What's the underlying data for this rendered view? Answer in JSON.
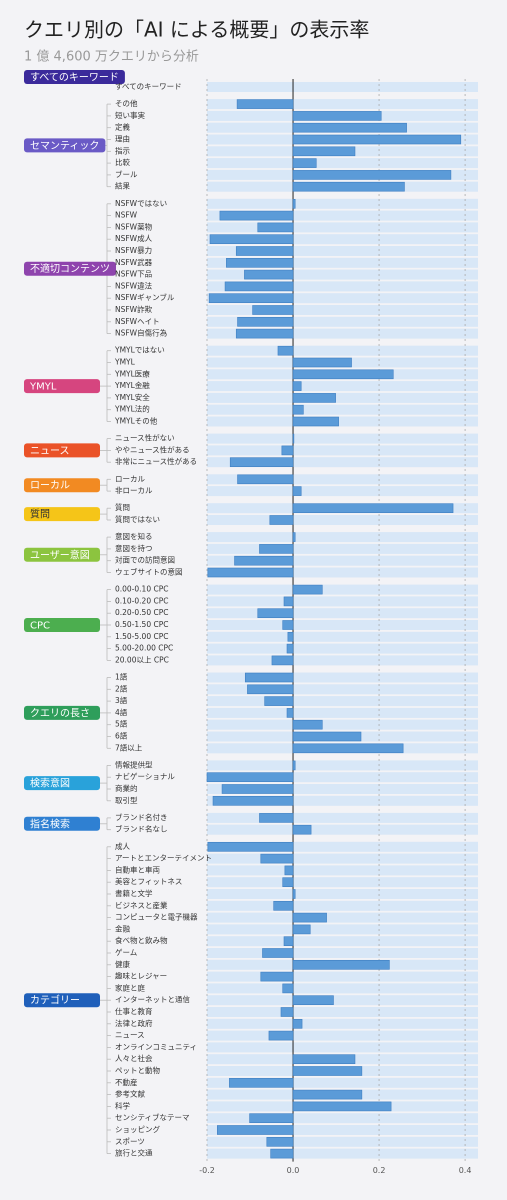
{
  "chart_data": {
    "type": "bar",
    "title": "クエリ別の「AI による概要」の表示率",
    "subtitle": "1 億 4,600 万クエリから分析",
    "bar_color": "#5b9bd8",
    "row_color": "#d8e7f7",
    "grid": true,
    "xlim": [
      -0.2,
      0.43
    ],
    "xticks": [
      -0.2,
      {
        "value": 0,
        "label": "0.0"
      },
      0.2,
      0.4
    ],
    "groups": [
      {
        "name": "すべてのキーワード",
        "color": "#3b2a9b",
        "categories": [
          "すべてのキーワード"
        ],
        "values": [
          0
        ]
      },
      {
        "name": "セマンティック",
        "color": "#6a5ac6",
        "categories": [
          "その他",
          "短い事実",
          "定義",
          "理由",
          "指示",
          "比較",
          "ブール",
          "結果"
        ],
        "values": [
          -0.13,
          0.205,
          0.264,
          0.39,
          0.144,
          0.054,
          0.367,
          0.259
        ]
      },
      {
        "name": "不適切コンテンツ",
        "color": "#8e44ad",
        "categories": [
          "NSFWではない",
          "NSFW",
          "NSFW薬物",
          "NSFW成人",
          "NSFW暴力",
          "NSFW武器",
          "NSFW下品",
          "NSFW違法",
          "NSFWギャンブル",
          "NSFW詐欺",
          "NSFWヘイト",
          "NSFW自傷行為"
        ],
        "values": [
          0.005,
          -0.17,
          -0.082,
          -0.193,
          -0.132,
          -0.155,
          -0.113,
          -0.158,
          -0.195,
          -0.094,
          -0.129,
          -0.132
        ]
      },
      {
        "name": "YMYL",
        "color": "#d6457f",
        "categories": [
          "YMYLではない",
          "YMYL",
          "YMYL医療",
          "YMYL金融",
          "YMYL安全",
          "YMYL法的",
          "YMYLその他"
        ],
        "values": [
          -0.035,
          0.136,
          0.233,
          0.019,
          0.099,
          0.024,
          0.106
        ]
      },
      {
        "name": "ニュース",
        "color": "#ea5228",
        "categories": [
          "ニュース性がない",
          "ややニュース性がある",
          "非常にニュース性がある"
        ],
        "values": [
          0.002,
          -0.026,
          -0.146
        ]
      },
      {
        "name": "ローカル",
        "color": "#f28a22",
        "categories": [
          "ローカル",
          "非ローカル"
        ],
        "values": [
          -0.129,
          0.019
        ]
      },
      {
        "name": "質問",
        "color": "#f5c518",
        "categories": [
          "質問",
          "質問ではない"
        ],
        "values": [
          0.372,
          -0.054
        ]
      },
      {
        "name": "ユーザー意図",
        "color": "#8cc43f",
        "categories": [
          "意図を知る",
          "意図を持つ",
          "対面での訪問意図",
          "ウェブサイトの意図"
        ],
        "values": [
          0.005,
          -0.078,
          -0.136,
          -0.198
        ]
      },
      {
        "name": "CPC",
        "color": "#4cae4f",
        "categories": [
          "0.00-0.10 CPC",
          "0.10-0.20 CPC",
          "0.20-0.50 CPC",
          "0.50-1.50 CPC",
          "1.50-5.00 CPC",
          "5.00-20.00 CPC",
          "20.00以上 CPC"
        ],
        "values": [
          0.068,
          -0.021,
          -0.082,
          -0.024,
          -0.012,
          -0.014,
          -0.049
        ]
      },
      {
        "name": "クエリの長さ",
        "color": "#2e9e5b",
        "categories": [
          "1語",
          "2語",
          "3語",
          "4語",
          "5語",
          "6語",
          "7語以上"
        ],
        "values": [
          -0.111,
          -0.106,
          -0.066,
          -0.014,
          0.068,
          0.158,
          0.256
        ]
      },
      {
        "name": "検索意図",
        "color": "#29a2da",
        "categories": [
          "情報提供型",
          "ナビゲーショナル",
          "商業的",
          "取引型"
        ],
        "values": [
          0.005,
          -0.2,
          -0.165,
          -0.186
        ]
      },
      {
        "name": "指名検索",
        "color": "#2f80d2",
        "categories": [
          "ブランド名付き",
          "ブランド名なし"
        ],
        "values": [
          -0.078,
          0.042
        ]
      },
      {
        "name": "カテゴリー",
        "color": "#1f5fba",
        "categories": [
          "成人",
          "アートとエンターテイメント",
          "自動車と車両",
          "美容とフィットネス",
          "書籍と文学",
          "ビジネスと産業",
          "コンピュータと電子機器",
          "金融",
          "食べ物と飲み物",
          "ゲーム",
          "健康",
          "趣味とレジャー",
          "家庭と庭",
          "インターネットと通信",
          "仕事と教育",
          "法律と政府",
          "ニュース",
          "オンラインコミュニティ",
          "人々と社会",
          "ペットと動物",
          "不動産",
          "参考文献",
          "科学",
          "センシティブなテーマ",
          "ショッピング",
          "スポーツ",
          "旅行と交通"
        ],
        "values": [
          -0.198,
          -0.075,
          -0.019,
          -0.024,
          0.005,
          -0.045,
          0.078,
          0.04,
          -0.021,
          -0.071,
          0.224,
          -0.075,
          -0.024,
          0.094,
          -0.028,
          0.021,
          -0.056,
          0,
          0.144,
          0.16,
          -0.148,
          0.16,
          0.228,
          -0.101,
          -0.176,
          -0.061,
          -0.052
        ]
      }
    ]
  }
}
